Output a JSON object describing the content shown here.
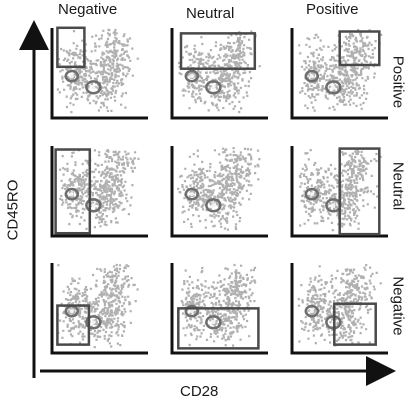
{
  "figure": {
    "column_headers": [
      "Negative",
      "Neutral",
      "Positive"
    ],
    "row_labels": [
      "Positive",
      "Neutral",
      "Negative"
    ],
    "y_axis_label": "CD45RO",
    "x_axis_label": "CD28",
    "colors": {
      "dot": "#8f8f8f",
      "dense": "#6e6e6e",
      "gate": "#4a4a4a",
      "axis": "#111111"
    },
    "gates": [
      [
        "top-left",
        "top-wide",
        "top-right"
      ],
      [
        "left-tall",
        "none",
        "right-tall"
      ],
      [
        "bottom-left",
        "bottom-wide",
        "bottom-right"
      ]
    ]
  }
}
